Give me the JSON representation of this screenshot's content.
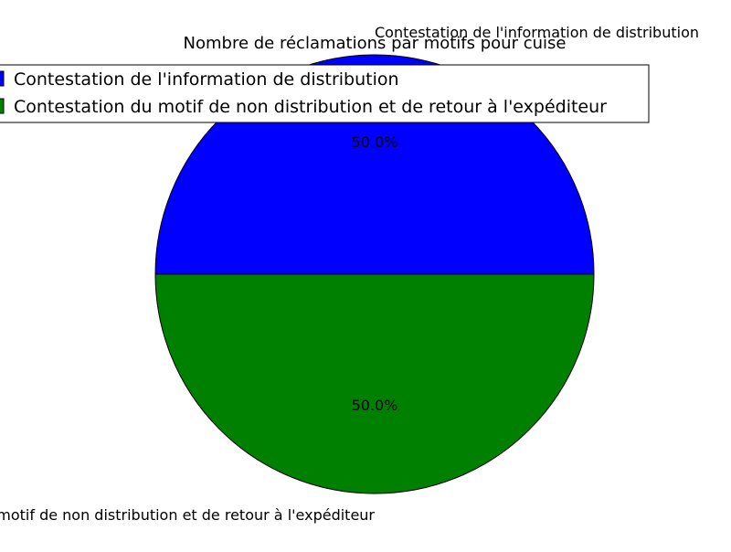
{
  "chart_data": {
    "type": "pie",
    "title": "Nombre de réclamations par motifs pour cuise",
    "categories": [
      "Contestation de l'information de distribution",
      "Contestation du motif de non distribution et de retour à l'expéditeur"
    ],
    "values": [
      50,
      50
    ],
    "pct_labels": [
      "50.0%",
      "50.0%"
    ],
    "colors": [
      "#0000ff",
      "#008000"
    ],
    "legend": {
      "position": "top",
      "entries": [
        "Contestation de l'information de distribution",
        "Contestation du motif de non distribution et de retour à l'expéditeur"
      ]
    }
  }
}
